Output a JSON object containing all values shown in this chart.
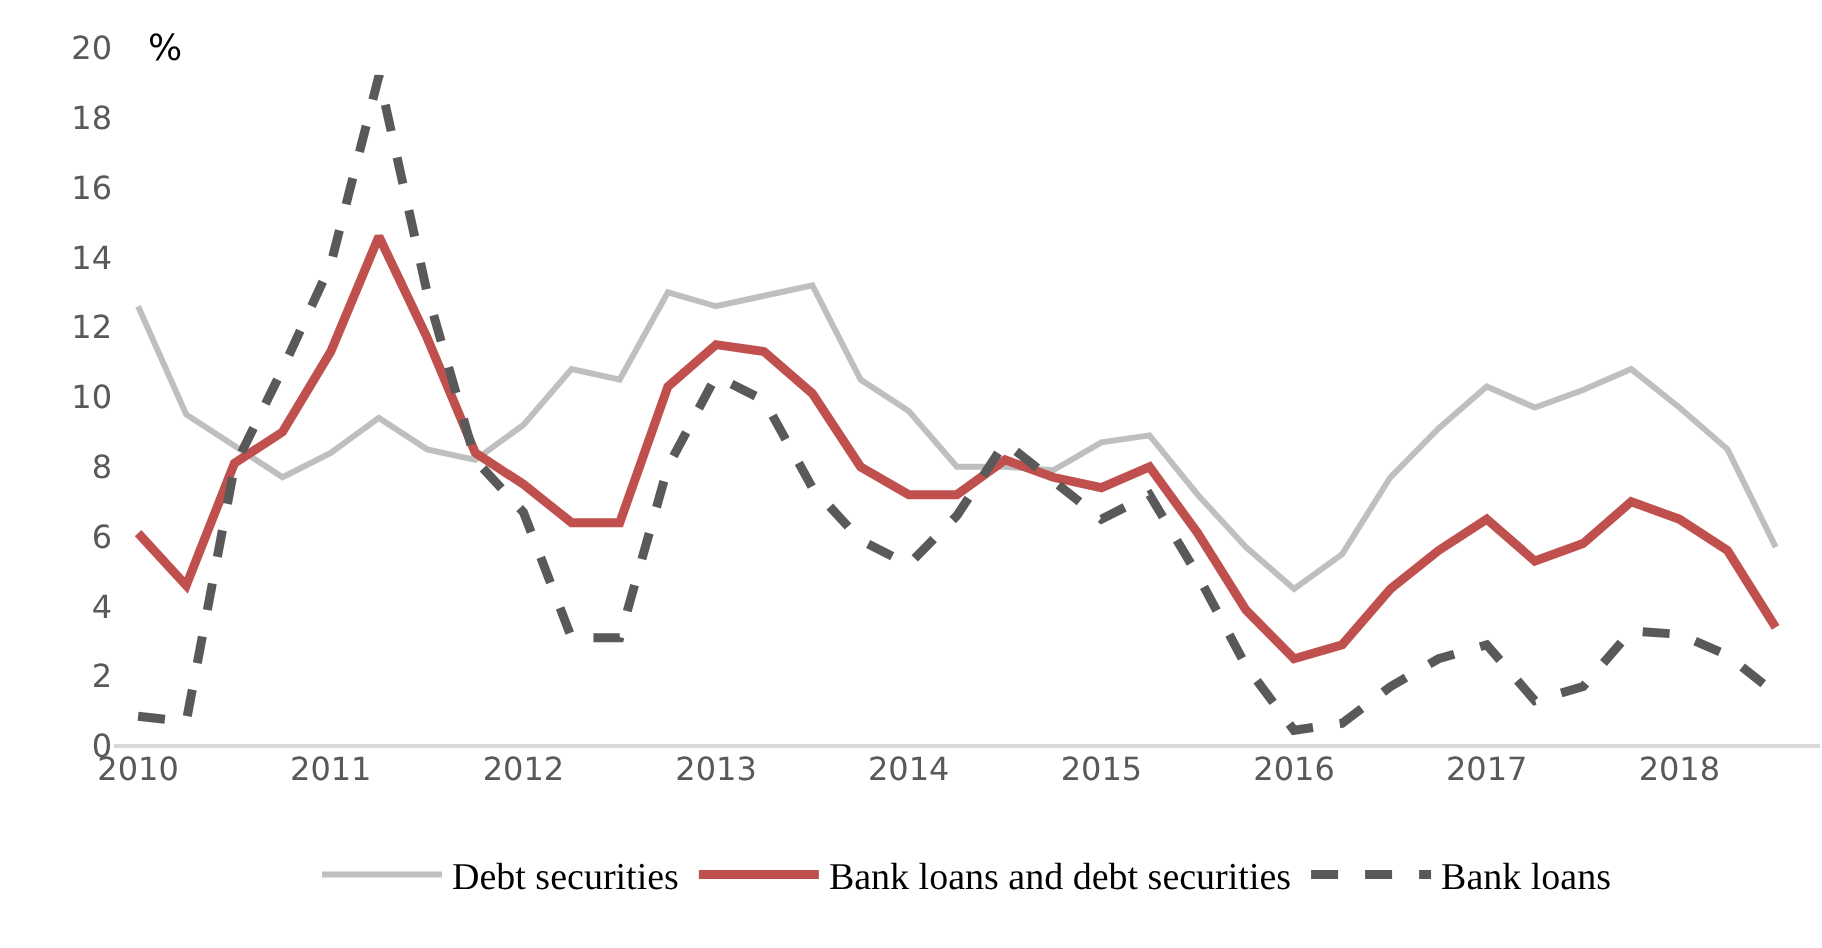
{
  "chart_data": {
    "type": "line",
    "ylabel": "%",
    "x": [
      2010,
      2010.25,
      2010.5,
      2010.75,
      2011,
      2011.25,
      2011.5,
      2011.75,
      2012,
      2012.25,
      2012.5,
      2012.75,
      2013,
      2013.25,
      2013.5,
      2013.75,
      2014,
      2014.25,
      2014.5,
      2014.75,
      2015,
      2015.25,
      2015.5,
      2015.75,
      2016,
      2016.25,
      2016.5,
      2016.75,
      2017,
      2017.25,
      2017.5,
      2017.75,
      2018,
      2018.25,
      2018.5
    ],
    "series": [
      {
        "name": "Debt securities",
        "color": "#bfbfbf",
        "line_style": "solid",
        "values": [
          12.6,
          9.5,
          8.6,
          7.7,
          8.4,
          9.4,
          8.5,
          8.2,
          9.2,
          10.8,
          10.5,
          13.0,
          12.6,
          12.9,
          13.2,
          10.5,
          9.6,
          8.0,
          8.0,
          7.9,
          8.7,
          8.9,
          7.2,
          5.7,
          4.5,
          5.5,
          7.7,
          9.1,
          10.3,
          9.7,
          10.2,
          10.8,
          9.7,
          8.5,
          5.7
        ]
      },
      {
        "name": "Bank loans and debt securities",
        "color": "#c0504d",
        "line_style": "solid",
        "values": [
          6.1,
          4.6,
          8.1,
          9.0,
          11.3,
          14.6,
          11.7,
          8.4,
          7.5,
          6.4,
          6.4,
          10.3,
          11.5,
          11.3,
          10.1,
          8.0,
          7.2,
          7.2,
          8.2,
          7.7,
          7.4,
          8.0,
          6.1,
          3.9,
          2.5,
          2.9,
          4.5,
          5.6,
          6.5,
          5.3,
          5.8,
          7.0,
          6.5,
          5.6,
          3.4
        ]
      },
      {
        "name": "Bank loans",
        "color": "#595959",
        "line_style": "dashed",
        "values": [
          0.85,
          0.7,
          8.0,
          10.8,
          13.8,
          19.2,
          13.0,
          8.2,
          6.7,
          3.1,
          3.1,
          8.0,
          10.6,
          9.9,
          7.4,
          5.9,
          5.2,
          6.6,
          8.7,
          7.6,
          6.5,
          7.2,
          4.9,
          2.3,
          0.45,
          0.65,
          1.7,
          2.5,
          2.9,
          1.3,
          1.7,
          3.3,
          3.2,
          2.6,
          1.5
        ]
      }
    ],
    "xlim": [
      2009.875,
      2018.73
    ],
    "xticks": [
      2010,
      2011,
      2012,
      2013,
      2014,
      2015,
      2016,
      2017,
      2018
    ],
    "ylim": [
      0,
      20
    ],
    "yticks": [
      0,
      2,
      4,
      6,
      8,
      10,
      12,
      14,
      16,
      18,
      20
    ],
    "grid": false,
    "legend": "bottom",
    "marker": "none"
  }
}
